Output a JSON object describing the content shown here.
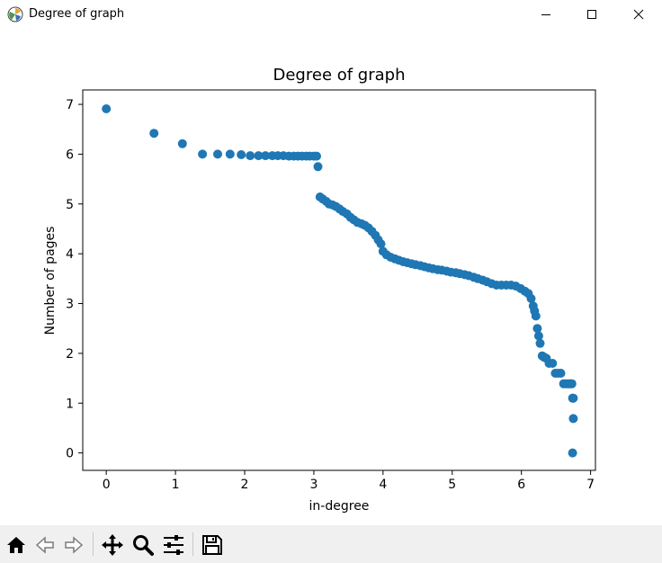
{
  "window": {
    "title": "Degree of graph",
    "icon": "matplotlib-figure-icon",
    "controls": [
      "minimize",
      "maximize",
      "close"
    ]
  },
  "toolbar": {
    "buttons": [
      "home-icon",
      "back-icon",
      "forward-icon",
      "pan-icon",
      "zoom-icon",
      "configure-subplots-icon",
      "save-icon"
    ]
  },
  "chart_data": {
    "type": "scatter",
    "title": "Degree of graph",
    "xlabel": "in-degree",
    "ylabel": "Number of pages",
    "xlim": [
      -0.34,
      7.07
    ],
    "ylim": [
      -0.35,
      7.29
    ],
    "xticks": [
      "0",
      "1",
      "2",
      "3",
      "4",
      "5",
      "6",
      "7"
    ],
    "yticks": [
      "0",
      "1",
      "2",
      "3",
      "4",
      "5",
      "6",
      "7"
    ],
    "marker_color": "#1f77b4",
    "grid": false,
    "x": [
      0.0,
      0.69,
      1.1,
      1.39,
      1.61,
      1.79,
      1.95,
      2.08,
      2.2,
      2.3,
      2.4,
      2.48,
      2.56,
      2.64,
      2.71,
      2.77,
      2.83,
      2.89,
      2.94,
      3.0,
      3.04,
      3.06,
      3.09,
      3.13,
      3.18,
      3.22,
      3.27,
      3.32,
      3.37,
      3.42,
      3.48,
      3.53,
      3.58,
      3.63,
      3.69,
      3.74,
      3.79,
      3.84,
      3.89,
      3.93,
      3.97,
      4.0,
      4.05,
      4.11,
      4.17,
      4.23,
      4.29,
      4.35,
      4.41,
      4.47,
      4.54,
      4.6,
      4.66,
      4.72,
      4.79,
      4.85,
      4.92,
      4.98,
      5.05,
      5.11,
      5.18,
      5.24,
      5.31,
      5.37,
      5.44,
      5.5,
      5.57,
      5.64,
      5.71,
      5.78,
      5.85,
      5.92,
      5.99,
      6.05,
      6.1,
      6.14,
      6.17,
      6.19,
      6.21,
      6.23,
      6.25,
      6.27,
      6.3,
      6.33,
      6.36,
      6.4,
      6.45,
      6.49,
      6.53,
      6.57,
      6.61,
      6.64,
      6.67,
      6.69,
      6.71,
      6.73,
      6.74,
      6.75,
      6.75,
      6.74
    ],
    "y": [
      6.91,
      6.42,
      6.21,
      6.0,
      6.0,
      6.0,
      5.99,
      5.97,
      5.97,
      5.97,
      5.97,
      5.97,
      5.97,
      5.96,
      5.96,
      5.96,
      5.96,
      5.96,
      5.96,
      5.96,
      5.96,
      5.75,
      5.14,
      5.1,
      5.05,
      5.0,
      4.98,
      4.95,
      4.9,
      4.85,
      4.8,
      4.73,
      4.68,
      4.63,
      4.6,
      4.57,
      4.52,
      4.45,
      4.37,
      4.28,
      4.2,
      4.05,
      3.98,
      3.93,
      3.9,
      3.87,
      3.84,
      3.82,
      3.8,
      3.78,
      3.76,
      3.74,
      3.72,
      3.7,
      3.68,
      3.67,
      3.65,
      3.63,
      3.62,
      3.6,
      3.58,
      3.56,
      3.53,
      3.5,
      3.47,
      3.44,
      3.4,
      3.37,
      3.37,
      3.37,
      3.37,
      3.35,
      3.3,
      3.25,
      3.2,
      3.1,
      2.95,
      2.85,
      2.75,
      2.5,
      2.35,
      2.2,
      1.95,
      1.92,
      1.9,
      1.8,
      1.8,
      1.6,
      1.6,
      1.6,
      1.39,
      1.39,
      1.39,
      1.39,
      1.39,
      1.39,
      1.1,
      1.1,
      0.69,
      0.0
    ]
  }
}
